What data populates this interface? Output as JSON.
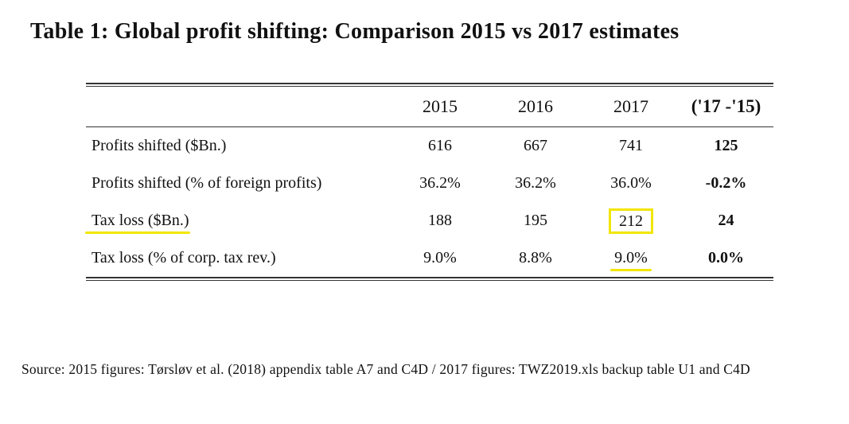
{
  "title": "Table 1: Global profit shifting: Comparison 2015 vs 2017 estimates",
  "table": {
    "headers": [
      "",
      "2015",
      "2016",
      "2017",
      "('17 -'15)"
    ],
    "rows": [
      {
        "label": "Profits shifted ($Bn.)",
        "y2015": "616",
        "y2016": "667",
        "y2017": "741",
        "diff": "125"
      },
      {
        "label": "Profits shifted (% of foreign profits)",
        "y2015": "36.2%",
        "y2016": "36.2%",
        "y2017": "36.0%",
        "diff": "-0.2%"
      },
      {
        "label": "Tax loss ($Bn.)",
        "y2015": "188",
        "y2016": "195",
        "y2017": "212",
        "diff": "24"
      },
      {
        "label": "Tax loss (% of corp. tax rev.)",
        "y2015": "9.0%",
        "y2016": "8.8%",
        "y2017": "9.0%",
        "diff": "0.0%"
      }
    ]
  },
  "source": "Source: 2015 figures: Tørsløv et al. (2018) appendix table A7 and C4D / 2017 figures: TWZ2019.xls backup table U1 and C4D",
  "highlight_color": "#f2e600"
}
